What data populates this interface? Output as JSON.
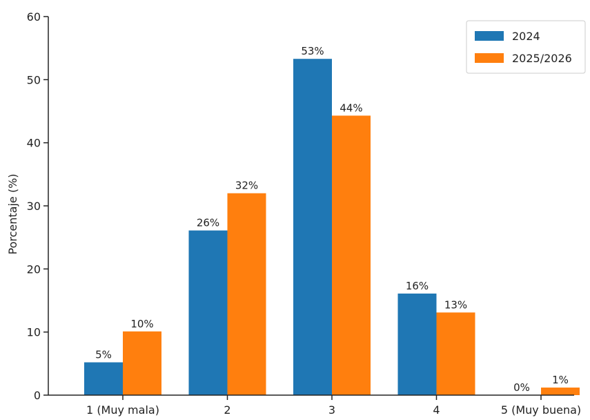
{
  "chart_data": {
    "type": "bar",
    "title": "",
    "xlabel": "",
    "ylabel": "Porcentaje (%)",
    "ylim": [
      0,
      60
    ],
    "yticks": [
      0,
      10,
      20,
      30,
      40,
      50,
      60
    ],
    "categories": [
      "1 (Muy mala)",
      "2",
      "3",
      "4",
      "5 (Muy buena)"
    ],
    "series": [
      {
        "name": "2024",
        "color": "#1f77b4",
        "values": [
          5.2,
          26.1,
          53.3,
          16.1,
          0
        ],
        "labels": [
          "5%",
          "26%",
          "53%",
          "16%",
          "0%"
        ]
      },
      {
        "name": "2025/2026",
        "color": "#ff7f0e",
        "values": [
          10.1,
          32.0,
          44.3,
          13.1,
          1.2
        ],
        "labels": [
          "10%",
          "32%",
          "44%",
          "13%",
          "1%"
        ]
      }
    ],
    "legend_position": "top-right",
    "grid": false
  }
}
